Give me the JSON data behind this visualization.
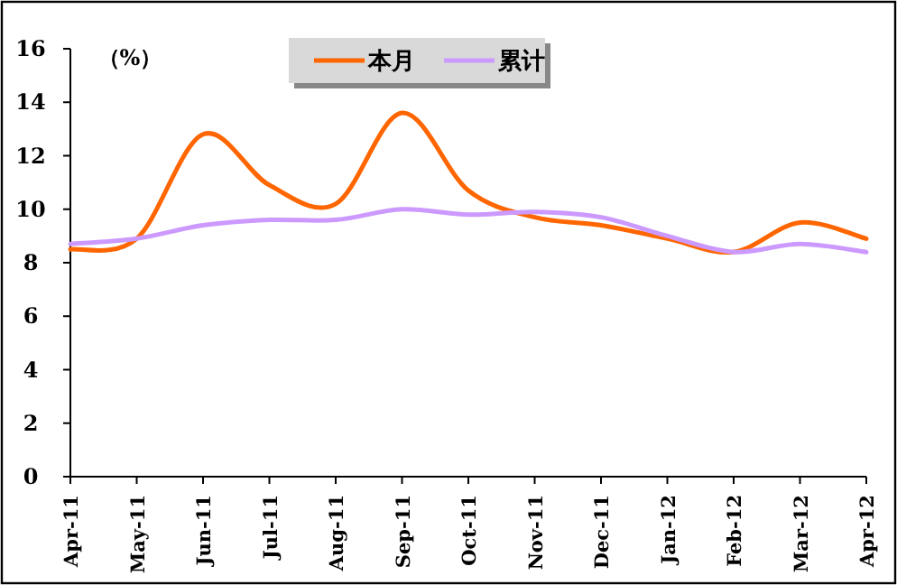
{
  "chart_data": {
    "type": "line",
    "ylabel": "（%）",
    "categories": [
      "Apr-11",
      "May-11",
      "Jun-11",
      "Jul-11",
      "Aug-11",
      "Sep-11",
      "Oct-11",
      "Nov-11",
      "Dec-11",
      "Jan-12",
      "Feb-12",
      "Mar-12",
      "Apr-12"
    ],
    "series": [
      {
        "name": "本月",
        "color": "#ff6600",
        "values": [
          8.5,
          8.9,
          12.8,
          10.9,
          10.2,
          13.6,
          10.7,
          9.7,
          9.4,
          8.9,
          8.4,
          9.5,
          8.9
        ]
      },
      {
        "name": "累计",
        "color": "#cc99ff",
        "values": [
          8.7,
          8.9,
          9.4,
          9.6,
          9.6,
          10.0,
          9.8,
          9.9,
          9.7,
          9.0,
          8.4,
          8.7,
          8.4
        ]
      }
    ],
    "ylim": [
      0,
      16
    ],
    "yticks": [
      0,
      2,
      4,
      6,
      8,
      10,
      12,
      14,
      16
    ],
    "grid": false,
    "legend": "top",
    "marker": "none",
    "line_style": "solid"
  }
}
